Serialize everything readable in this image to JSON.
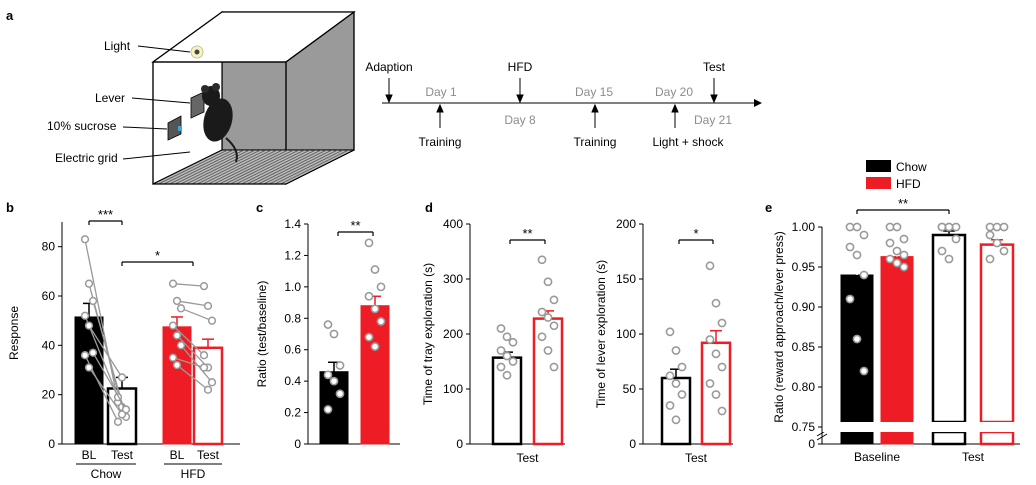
{
  "colors": {
    "chow": "#000000",
    "hfd": "#ee1c24",
    "dot": "#9a9a9a",
    "line": "#999999",
    "timeline_grey": "#8c8c8c"
  },
  "panel_a": {
    "letter": "a",
    "apparatus_labels": {
      "light": "Light",
      "lever": "Lever",
      "sucrose": "10% sucrose",
      "grid": "Electric grid"
    },
    "timeline": {
      "top_labels": [
        "Adaption",
        "HFD",
        "Test"
      ],
      "grey_top": [
        "Day 1",
        "Day 15",
        "Day 20"
      ],
      "grey_bottom": [
        "Day 8",
        "Day 21"
      ],
      "bottom_labels": [
        "Training",
        "Training",
        "Light + shock"
      ]
    }
  },
  "chart_data": [
    {
      "panel": "b",
      "type": "bar",
      "ylabel": "Response",
      "ylim": [
        0,
        90
      ],
      "yticks": [
        0,
        20,
        40,
        60,
        80
      ],
      "categories": [
        "BL",
        "Test",
        "BL",
        "Test"
      ],
      "groups": [
        "Chow",
        "HFD"
      ],
      "values": [
        51.5,
        22.5,
        47.5,
        39
      ],
      "errors": [
        5.5,
        4.5,
        4,
        3.5
      ],
      "paired_points": {
        "chow": [
          [
            83,
            17
          ],
          [
            65,
            15
          ],
          [
            58,
            11
          ],
          [
            52,
            19
          ],
          [
            48,
            27
          ],
          [
            37,
            14
          ],
          [
            36,
            9
          ],
          [
            31,
            12
          ]
        ],
        "hfd": [
          [
            65,
            64
          ],
          [
            58,
            56
          ],
          [
            55,
            50
          ],
          [
            48,
            36
          ],
          [
            44,
            31
          ],
          [
            40,
            25
          ],
          [
            35,
            31
          ],
          [
            32,
            22
          ]
        ]
      },
      "significance": [
        "***",
        "*"
      ]
    },
    {
      "panel": "c",
      "type": "bar",
      "ylabel": "Ratio (test/baseline)",
      "ylim": [
        0,
        1.4
      ],
      "yticks": [
        "0",
        "0.2",
        "0.4",
        "0.6",
        "0.8",
        "1.0",
        "1.2",
        "1.4"
      ],
      "series": [
        {
          "name": "Chow",
          "value": 0.46,
          "error": 0.06
        },
        {
          "name": "HFD",
          "value": 0.88,
          "error": 0.06
        }
      ],
      "points": {
        "chow": [
          0.76,
          0.7,
          0.5,
          0.44,
          0.4,
          0.32,
          0.22
        ],
        "hfd": [
          1.28,
          1.11,
          1.0,
          0.94,
          0.86,
          0.78,
          0.68,
          0.62
        ]
      },
      "significance": "**"
    },
    {
      "panel": "d",
      "type": "bar",
      "ylabel": "Time of tray exploration (s)",
      "xlabel": "Test",
      "ylim": [
        0,
        400
      ],
      "yticks": [
        0,
        100,
        200,
        300,
        400
      ],
      "series": [
        {
          "name": "Chow",
          "value": 157,
          "error": 10
        },
        {
          "name": "HFD",
          "value": 228,
          "error": 14
        }
      ],
      "points": {
        "chow": [
          210,
          195,
          185,
          170,
          160,
          150,
          140,
          125
        ],
        "hfd": [
          335,
          295,
          262,
          240,
          230,
          215,
          195,
          170,
          140
        ]
      },
      "significance": "**"
    },
    {
      "panel": "d2",
      "type": "bar",
      "ylabel": "Time of lever exploration (s)",
      "xlabel": "Test",
      "ylim": [
        0,
        200
      ],
      "yticks": [
        0,
        50,
        100,
        150,
        200
      ],
      "series": [
        {
          "name": "Chow",
          "value": 60,
          "error": 8
        },
        {
          "name": "HFD",
          "value": 92,
          "error": 11
        }
      ],
      "points": {
        "chow": [
          102,
          85,
          70,
          62,
          55,
          45,
          35,
          22
        ],
        "hfd": [
          162,
          128,
          110,
          95,
          82,
          70,
          55,
          45,
          30
        ]
      },
      "significance": "*"
    },
    {
      "panel": "e",
      "type": "bar",
      "ylabel": "Ratio (reward approach/lever press)",
      "categories": [
        "Baseline",
        "Test"
      ],
      "ylim": [
        0.75,
        1.0
      ],
      "yticks": [
        "0.75",
        "0.80",
        "0.85",
        "0.90",
        "0.95",
        "1.00"
      ],
      "ybreak_label": "0",
      "legend": [
        "Chow",
        "HFD"
      ],
      "series": [
        {
          "name": "Chow",
          "values": [
            0.94,
            0.99
          ],
          "errors": [
            0.018,
            0.005
          ]
        },
        {
          "name": "HFD",
          "values": [
            0.963,
            0.978
          ],
          "errors": [
            0.006,
            0.006
          ]
        }
      ],
      "points": {
        "chow_baseline": [
          1.0,
          1.0,
          0.99,
          0.975,
          0.965,
          0.94,
          0.91,
          0.86,
          0.82
        ],
        "hfd_baseline": [
          1.0,
          1.0,
          0.985,
          0.98,
          0.97,
          0.965,
          0.96,
          0.955,
          0.95
        ],
        "chow_test": [
          1.0,
          1.0,
          1.0,
          1.0,
          1.0,
          0.985,
          0.97,
          0.96
        ],
        "hfd_test": [
          1.0,
          1.0,
          1.0,
          0.99,
          0.98,
          0.97,
          0.96
        ]
      },
      "significance": "**"
    }
  ],
  "panel_letters": [
    "b",
    "c",
    "d",
    "e"
  ],
  "panel_b_groups": [
    "Chow",
    "HFD"
  ]
}
